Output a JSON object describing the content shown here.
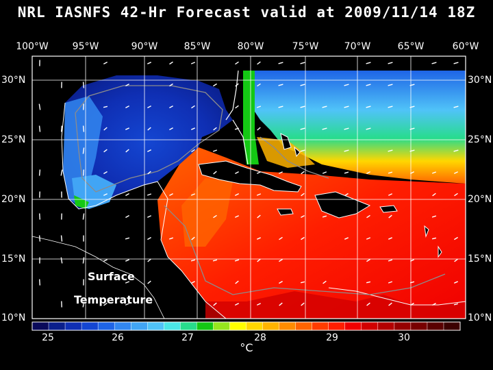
{
  "title": "NRL IASNFS  42-Hr Forecast valid at 2009/11/14 18Z",
  "longitude_labels": [
    "100°W",
    "95°W",
    "90°W",
    "85°W",
    "80°W",
    "75°W",
    "70°W",
    "65°W",
    "60°W"
  ],
  "latitude_labels": [
    "30°N",
    "25°N",
    "20°N",
    "15°N",
    "10°N"
  ],
  "map_labels": {
    "line1": "Surface",
    "line2": "Temperature"
  },
  "colorbar": {
    "tick_labels": [
      "25",
      "26",
      "27",
      "28",
      "29",
      "30"
    ],
    "units": "°C",
    "colors": [
      "#0a0a5a",
      "#0a1f8c",
      "#0f2fb4",
      "#1446d2",
      "#1e64e6",
      "#3287f0",
      "#41a5f5",
      "#50c3f8",
      "#4be6e6",
      "#28dc8c",
      "#14c814",
      "#96e61e",
      "#ffff00",
      "#ffd700",
      "#ffb400",
      "#ff8c00",
      "#ff6400",
      "#ff3c00",
      "#ff1e00",
      "#f00000",
      "#d20000",
      "#b40000",
      "#960000",
      "#780000",
      "#5a0000",
      "#3c0000"
    ]
  },
  "colors": {
    "land": "#000000",
    "grid": "#ffffff",
    "coastline": "#ffffff",
    "bathymetry_contour": "#8c8c8c",
    "vectors": "#ffffff"
  }
}
